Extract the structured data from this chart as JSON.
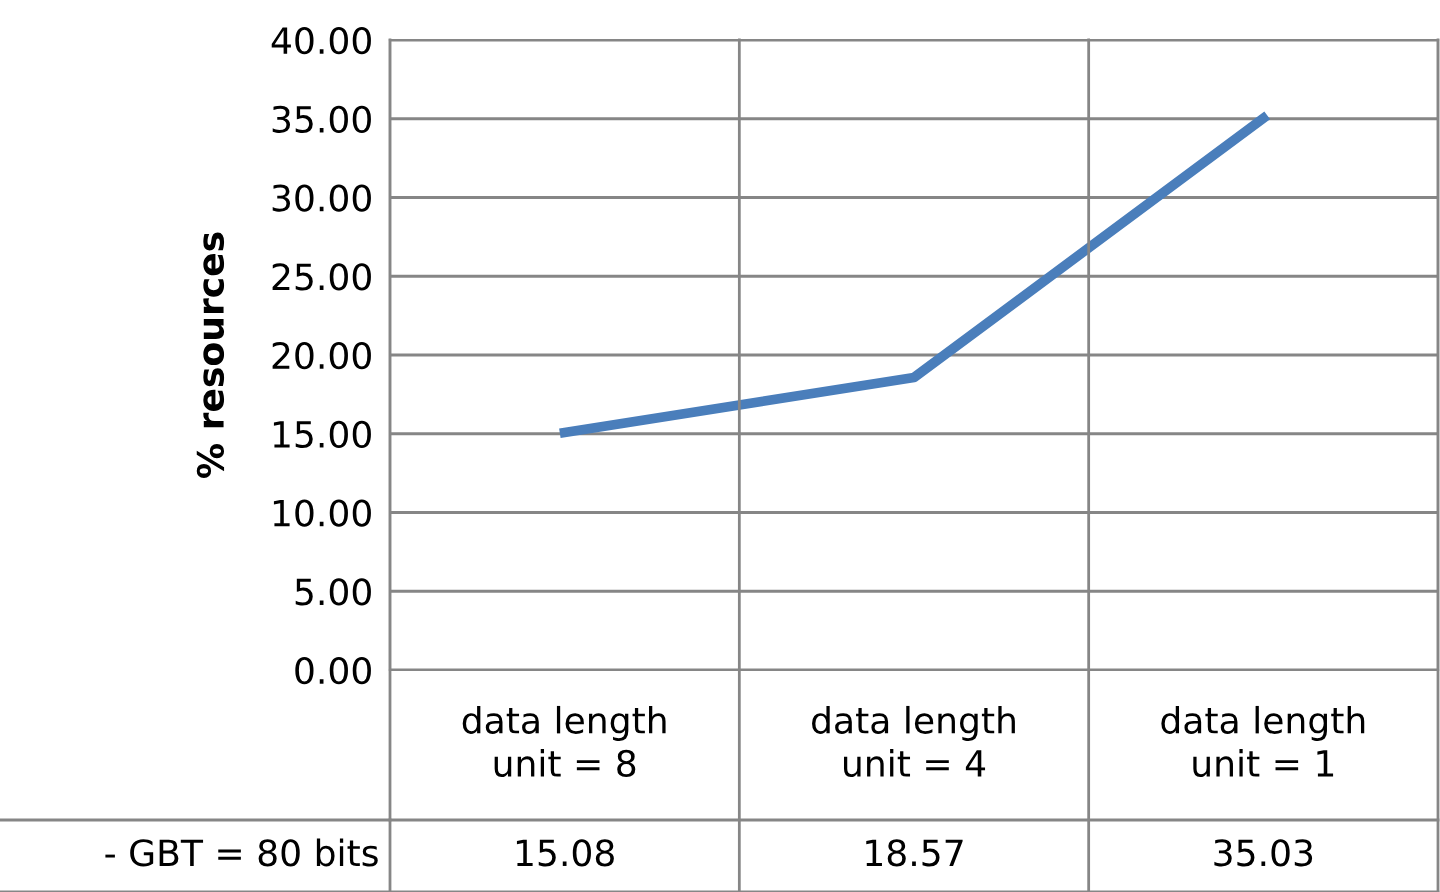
{
  "chart_data": {
    "type": "line",
    "ylabel": "% resources",
    "categories": [
      "data length\nunit = 8",
      "data length\nunit = 4",
      "data length\nunit = 1"
    ],
    "series": [
      {
        "name": "- GBT = 80 bits",
        "color": "#4a7ebb",
        "values": [
          15.08,
          18.57,
          35.03
        ]
      }
    ],
    "ylim": [
      0,
      40
    ],
    "yticks": [
      {
        "value": 0,
        "label": "0.00"
      },
      {
        "value": 5,
        "label": "5.00"
      },
      {
        "value": 10,
        "label": "10.00"
      },
      {
        "value": 15,
        "label": "15.00"
      },
      {
        "value": 20,
        "label": "20.00"
      },
      {
        "value": 25,
        "label": "25.00"
      },
      {
        "value": 30,
        "label": "30.00"
      },
      {
        "value": 35,
        "label": "35.00"
      },
      {
        "value": 40,
        "label": "40.00"
      }
    ],
    "grid": "y",
    "data_labels": true,
    "marker": "none",
    "line_style": "solid",
    "legend": false
  }
}
